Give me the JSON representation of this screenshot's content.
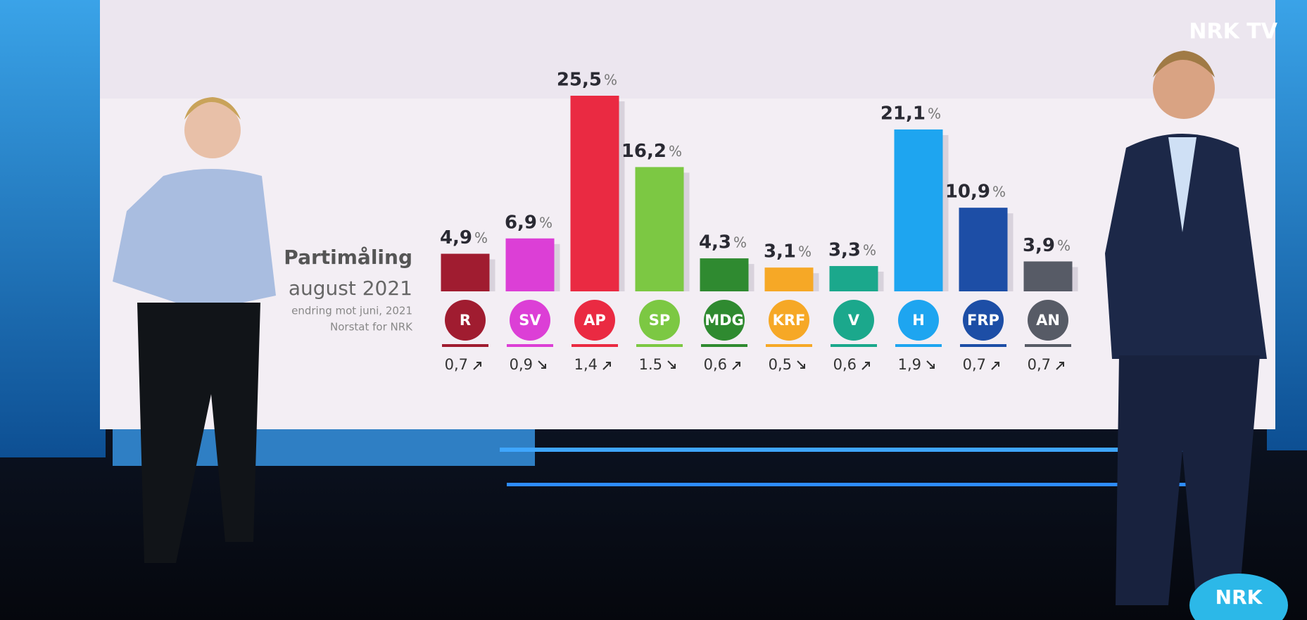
{
  "chart_data": {
    "type": "bar",
    "title": "Partimåling",
    "subtitle": "august 2021",
    "notes": [
      "endring mot juni, 2021",
      "Norstat for NRK"
    ],
    "unit": "%",
    "categories": [
      "R",
      "SV",
      "AP",
      "SP",
      "MDG",
      "KRF",
      "V",
      "H",
      "FRP",
      "AN"
    ],
    "values": [
      4.9,
      6.9,
      25.5,
      16.2,
      4.3,
      3.1,
      3.3,
      21.1,
      10.9,
      3.9
    ],
    "value_labels": [
      "4,9",
      "6,9",
      "25,5",
      "16,2",
      "4,3",
      "3,1",
      "3,3",
      "21,1",
      "10,9",
      "3,9"
    ],
    "colors": [
      "#a01c30",
      "#dc3fd6",
      "#ea2a42",
      "#7cc843",
      "#2f8a30",
      "#f6a826",
      "#1ba88c",
      "#1ea5f0",
      "#1d4ea6",
      "#575b66"
    ],
    "changes": [
      0.7,
      0.9,
      1.4,
      1.5,
      0.6,
      0.5,
      0.6,
      1.9,
      0.7,
      0.7
    ],
    "change_labels": [
      "0,7",
      "0,9",
      "1,4",
      "1.5",
      "0,6",
      "0,5",
      "0,6",
      "1,9",
      "0,7",
      "0,7"
    ],
    "change_direction": [
      "up",
      "down",
      "up",
      "down",
      "up",
      "down",
      "up",
      "down",
      "up",
      "up"
    ]
  },
  "broadcast": {
    "logo": "NRK TV",
    "corner_logo": "NRK"
  }
}
